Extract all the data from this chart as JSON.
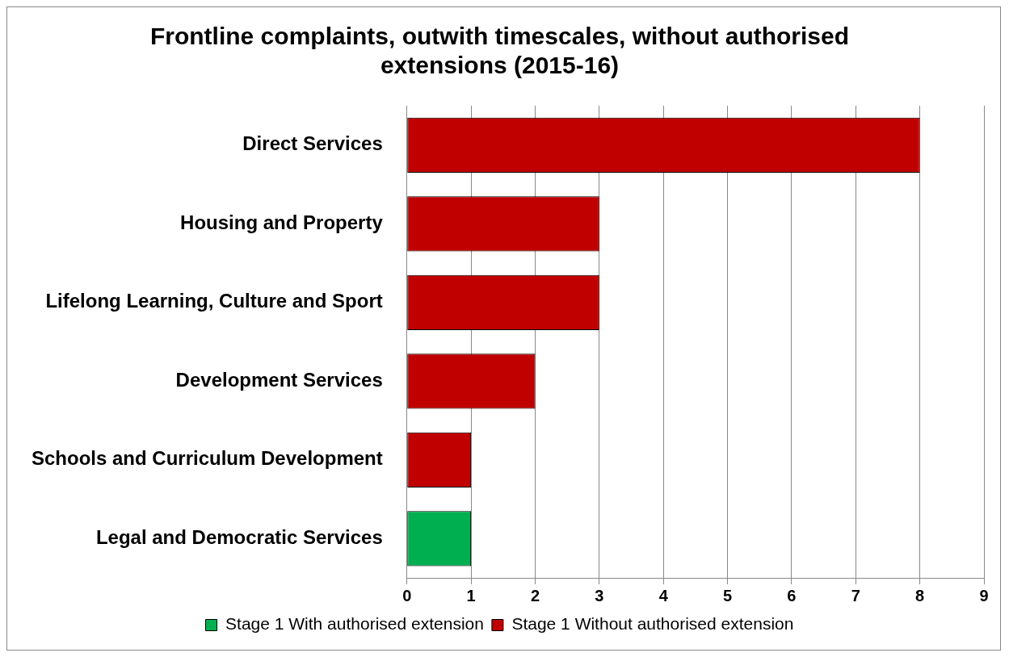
{
  "chart_data": {
    "type": "bar",
    "orientation": "horizontal",
    "stacked": true,
    "title": "Frontline complaints, outwith timescales, without authorised extensions (2015-16)",
    "categories": [
      "Direct Services",
      "Housing and Property",
      "Lifelong Learning, Culture and Sport",
      "Development Services",
      "Schools and Curriculum Development",
      "Legal and Democratic Services"
    ],
    "series": [
      {
        "name": "Stage 1 With authorised extension",
        "color": "#00b050",
        "values": [
          null,
          null,
          null,
          null,
          null,
          1
        ]
      },
      {
        "name": "Stage 1 Without authorised extension",
        "color": "#c00000",
        "values": [
          8,
          3,
          3,
          2,
          1,
          null
        ]
      }
    ],
    "xlim": [
      0,
      9
    ],
    "xticks": [
      0,
      1,
      2,
      3,
      4,
      5,
      6,
      7,
      8,
      9
    ],
    "grid": "x",
    "legend": "bottom"
  }
}
